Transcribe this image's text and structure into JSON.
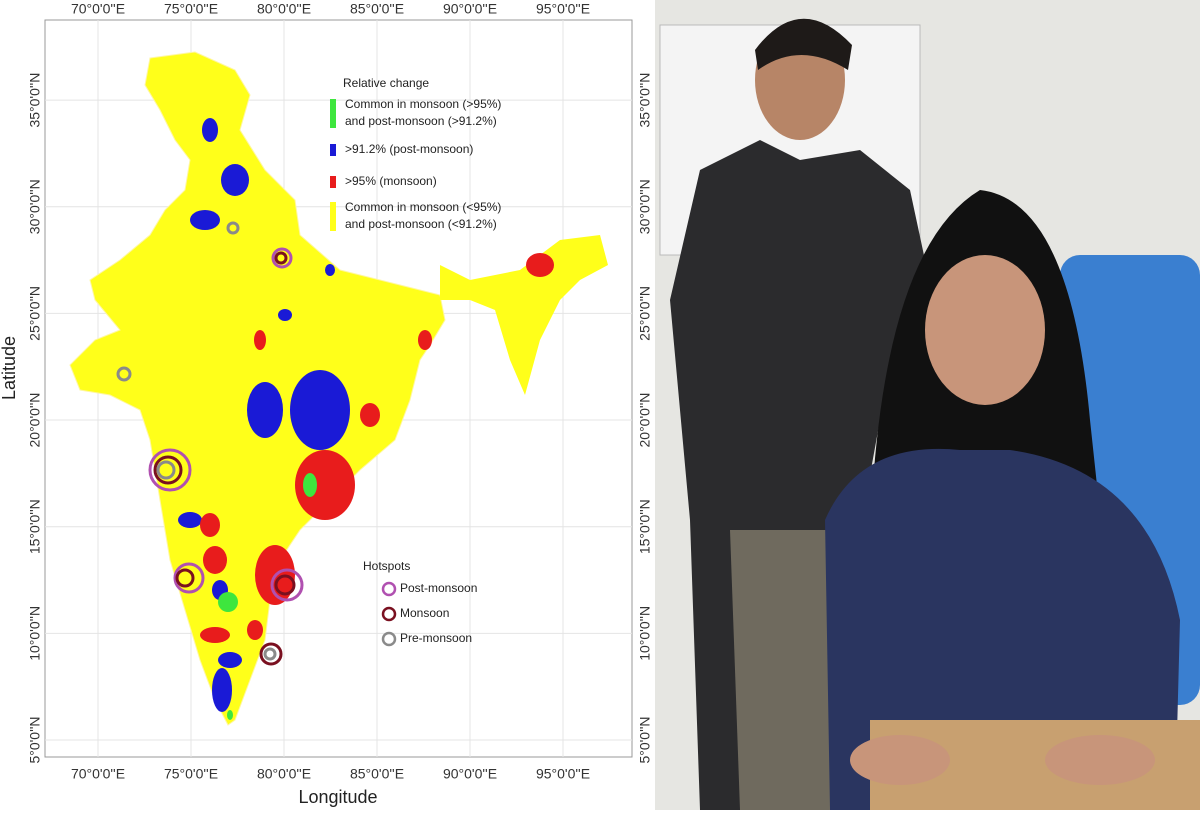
{
  "map": {
    "axis_labels": {
      "x": "Longitude",
      "y": "Latitude"
    },
    "lon_ticks": [
      {
        "value": 70,
        "label": "70°0'0''E"
      },
      {
        "value": 75,
        "label": "75°0'0''E"
      },
      {
        "value": 80,
        "label": "80°0'0''E"
      },
      {
        "value": 85,
        "label": "85°0'0''E"
      },
      {
        "value": 90,
        "label": "90°0'0''E"
      },
      {
        "value": 95,
        "label": "95°0'0''E"
      }
    ],
    "lat_ticks": [
      {
        "value": 5,
        "label": "5°0'0''N"
      },
      {
        "value": 10,
        "label": "10°0'0''N"
      },
      {
        "value": 15,
        "label": "15°0'0''N"
      },
      {
        "value": 20,
        "label": "20°0'0''N"
      },
      {
        "value": 25,
        "label": "25°0'0''N"
      },
      {
        "value": 30,
        "label": "30°0'0''N"
      },
      {
        "value": 35,
        "label": "35°0'0''N"
      }
    ],
    "legend": {
      "title": "Relative change",
      "items": [
        {
          "lines": [
            "Common in monsoon (>95%)",
            "and post-monsoon (>91.2%)"
          ],
          "color": "#3ee63e"
        },
        {
          "lines": [
            ">91.2% (post-monsoon)"
          ],
          "color": "#1a1ad6"
        },
        {
          "lines": [
            ">95% (monsoon)"
          ],
          "color": "#e81c1c"
        },
        {
          "lines": [
            "Common in monsoon (<95%)",
            "and post-monsoon (<91.2%)"
          ],
          "color": "#ffff1a"
        }
      ]
    },
    "hotspots": {
      "title": "Hotspots",
      "items": [
        {
          "label": "Post-monsoon",
          "color": "#b050b0"
        },
        {
          "label": "Monsoon",
          "color": "#7a1020"
        },
        {
          "label": "Pre-monsoon",
          "color": "#8a8a8a"
        }
      ]
    }
  }
}
